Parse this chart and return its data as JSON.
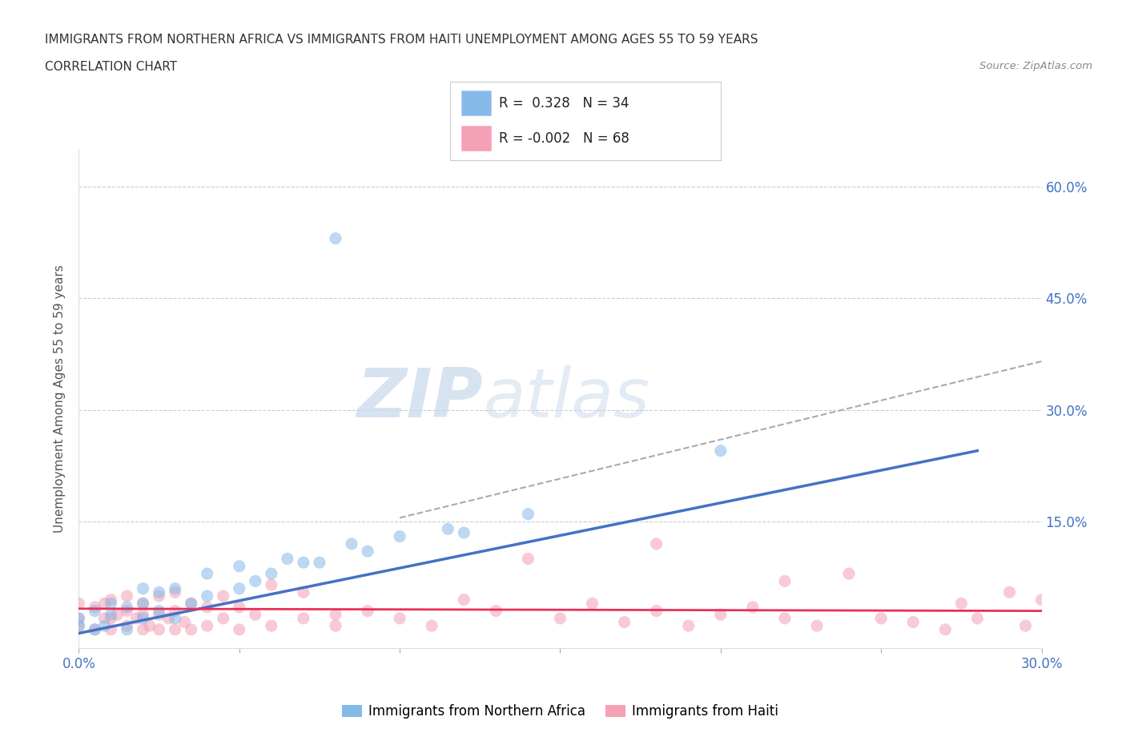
{
  "title_line1": "IMMIGRANTS FROM NORTHERN AFRICA VS IMMIGRANTS FROM HAITI UNEMPLOYMENT AMONG AGES 55 TO 59 YEARS",
  "title_line2": "CORRELATION CHART",
  "source": "Source: ZipAtlas.com",
  "ylabel": "Unemployment Among Ages 55 to 59 years",
  "xlim": [
    0.0,
    0.3
  ],
  "ylim": [
    -0.02,
    0.65
  ],
  "r_northern_africa": 0.328,
  "n_northern_africa": 34,
  "r_haiti": -0.002,
  "n_haiti": 68,
  "color_northern_africa": "#85B9E8",
  "color_haiti": "#F4A0B5",
  "trendline_color_africa": "#4472C4",
  "trendline_color_haiti": "#E8305A",
  "dashed_color": "#AAAAAA",
  "watermark_zip": "ZIP",
  "watermark_atlas": "atlas",
  "legend_label_africa": "Immigrants from Northern Africa",
  "legend_label_haiti": "Immigrants from Haiti",
  "ytick_positions": [
    0.0,
    0.15,
    0.3,
    0.45,
    0.6
  ],
  "ytick_labels_right": [
    "",
    "15.0%",
    "30.0%",
    "45.0%",
    "60.0%"
  ],
  "xtick_positions": [
    0.0,
    0.05,
    0.1,
    0.15,
    0.2,
    0.25,
    0.3
  ],
  "xtick_labels": [
    "0.0%",
    "",
    "",
    "",
    "",
    "",
    "30.0%"
  ],
  "grid_color": "#CCCCCC",
  "africa_trend_x": [
    0.0,
    0.28
  ],
  "africa_trend_y": [
    0.0,
    0.245
  ],
  "dashed_trend_x": [
    0.1,
    0.3
  ],
  "dashed_trend_y": [
    0.155,
    0.365
  ],
  "haiti_trend_x": [
    0.0,
    0.3
  ],
  "haiti_trend_y": [
    0.033,
    0.03
  ],
  "africa_scatter_x": [
    0.0,
    0.0,
    0.005,
    0.005,
    0.008,
    0.01,
    0.01,
    0.015,
    0.015,
    0.02,
    0.02,
    0.02,
    0.025,
    0.025,
    0.03,
    0.03,
    0.035,
    0.04,
    0.04,
    0.05,
    0.05,
    0.055,
    0.06,
    0.065,
    0.07,
    0.075,
    0.08,
    0.085,
    0.09,
    0.1,
    0.115,
    0.12,
    0.14,
    0.2
  ],
  "africa_scatter_y": [
    0.01,
    0.02,
    0.005,
    0.03,
    0.01,
    0.025,
    0.04,
    0.005,
    0.035,
    0.02,
    0.04,
    0.06,
    0.03,
    0.055,
    0.02,
    0.06,
    0.04,
    0.05,
    0.08,
    0.06,
    0.09,
    0.07,
    0.08,
    0.1,
    0.095,
    0.095,
    0.53,
    0.12,
    0.11,
    0.13,
    0.14,
    0.135,
    0.16,
    0.245
  ],
  "haiti_scatter_x": [
    0.0,
    0.0,
    0.0,
    0.005,
    0.005,
    0.008,
    0.008,
    0.01,
    0.01,
    0.01,
    0.012,
    0.015,
    0.015,
    0.015,
    0.018,
    0.02,
    0.02,
    0.02,
    0.022,
    0.025,
    0.025,
    0.025,
    0.028,
    0.03,
    0.03,
    0.03,
    0.033,
    0.035,
    0.035,
    0.04,
    0.04,
    0.045,
    0.045,
    0.05,
    0.05,
    0.055,
    0.06,
    0.06,
    0.07,
    0.07,
    0.08,
    0.08,
    0.09,
    0.1,
    0.11,
    0.12,
    0.13,
    0.14,
    0.15,
    0.16,
    0.17,
    0.18,
    0.19,
    0.2,
    0.21,
    0.22,
    0.23,
    0.24,
    0.25,
    0.26,
    0.27,
    0.275,
    0.28,
    0.29,
    0.295,
    0.3,
    0.18,
    0.22
  ],
  "haiti_scatter_y": [
    0.01,
    0.02,
    0.04,
    0.005,
    0.035,
    0.02,
    0.04,
    0.005,
    0.02,
    0.045,
    0.025,
    0.01,
    0.03,
    0.05,
    0.02,
    0.005,
    0.025,
    0.04,
    0.01,
    0.005,
    0.025,
    0.05,
    0.02,
    0.005,
    0.03,
    0.055,
    0.015,
    0.005,
    0.04,
    0.01,
    0.035,
    0.02,
    0.05,
    0.005,
    0.035,
    0.025,
    0.01,
    0.065,
    0.02,
    0.055,
    0.01,
    0.025,
    0.03,
    0.02,
    0.01,
    0.045,
    0.03,
    0.1,
    0.02,
    0.04,
    0.015,
    0.03,
    0.01,
    0.025,
    0.035,
    0.02,
    0.01,
    0.08,
    0.02,
    0.015,
    0.005,
    0.04,
    0.02,
    0.055,
    0.01,
    0.045,
    0.12,
    0.07
  ]
}
